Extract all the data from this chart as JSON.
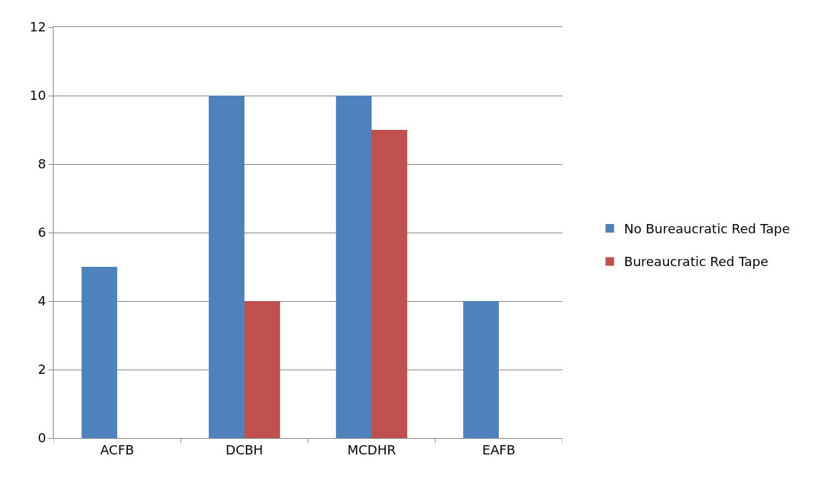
{
  "chart_data": {
    "type": "bar",
    "categories": [
      "ACFB",
      "DCBH",
      "MCDHR",
      "EAFB"
    ],
    "series": [
      {
        "name": "No Bureaucratic Red Tape",
        "color": "#4f81bd",
        "values": [
          5,
          10,
          10,
          4
        ]
      },
      {
        "name": "Bureaucratic Red Tape",
        "color": "#c0504d",
        "values": [
          0,
          4,
          9,
          0
        ]
      }
    ],
    "ylim": [
      0,
      12
    ],
    "yticks": [
      0,
      2,
      4,
      6,
      8,
      10,
      12
    ],
    "grid": "y",
    "legend": "right"
  }
}
